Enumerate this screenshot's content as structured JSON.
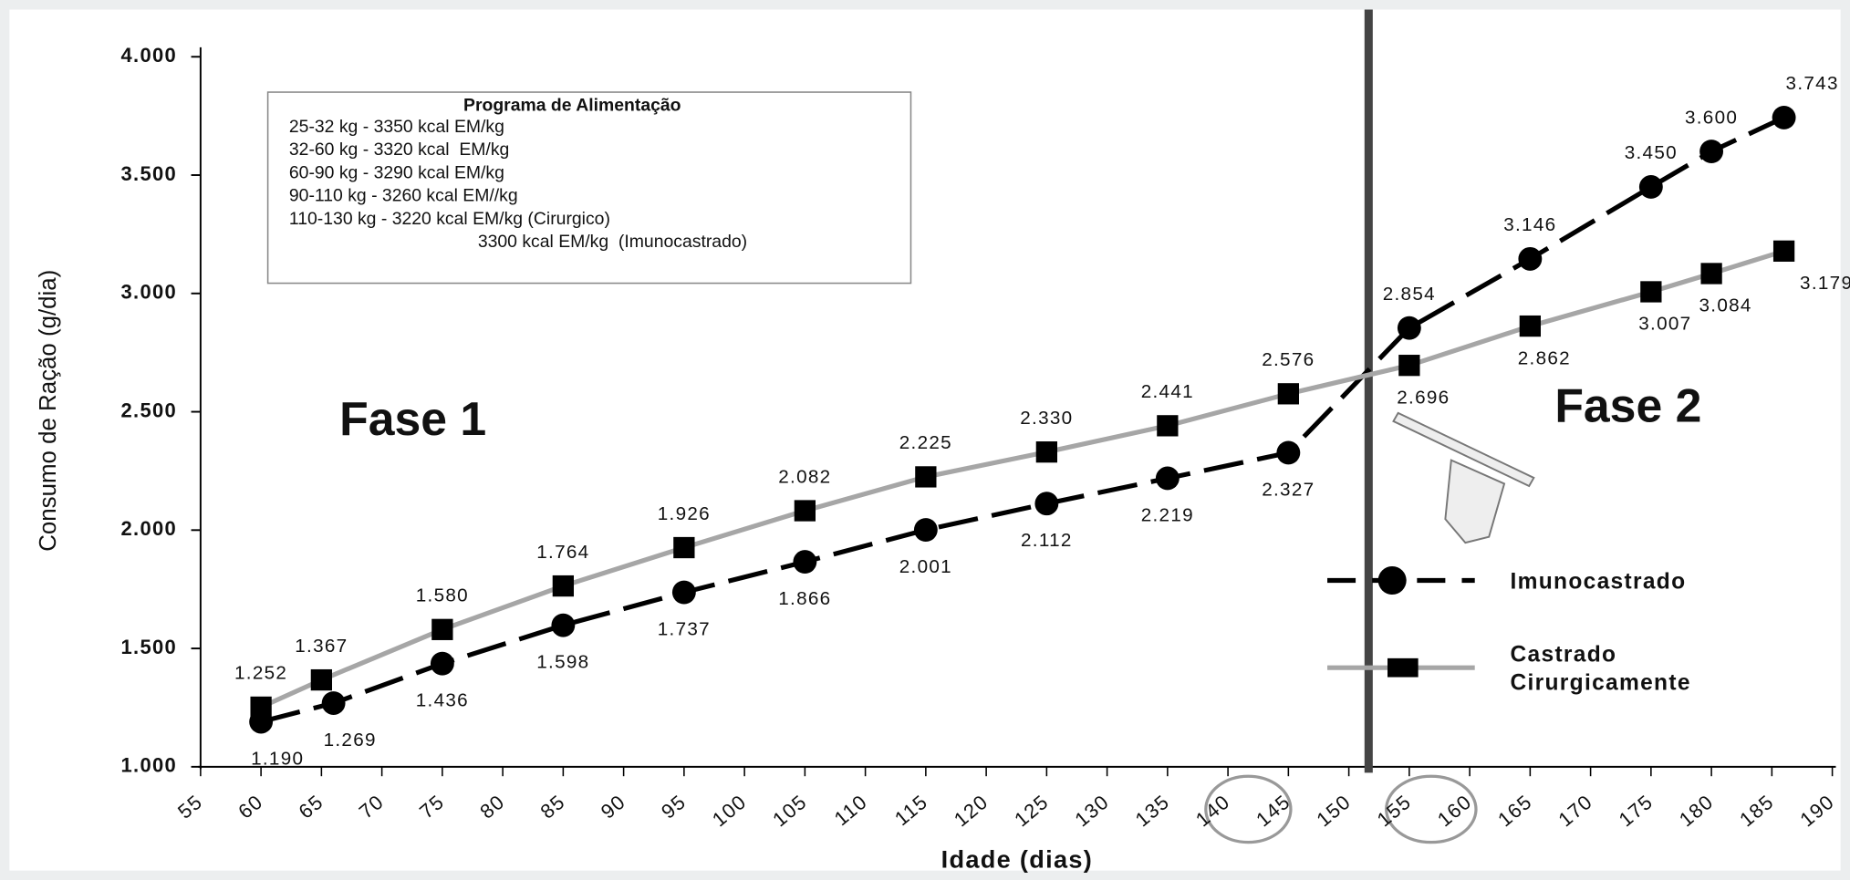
{
  "chart_data": {
    "type": "line",
    "x_label": "Idade (dias)",
    "y_label": "Consumo de Ração (g/dia)",
    "xlim": [
      55,
      190
    ],
    "xticks": [
      55,
      60,
      65,
      70,
      75,
      80,
      85,
      90,
      95,
      100,
      105,
      110,
      115,
      120,
      125,
      130,
      135,
      140,
      145,
      150,
      155,
      160,
      165,
      170,
      175,
      180,
      185,
      190
    ],
    "ylim": [
      1000,
      4000
    ],
    "yticks": [
      {
        "value": 1000,
        "label": "1.000"
      },
      {
        "value": 1500,
        "label": "1.500"
      },
      {
        "value": 2000,
        "label": "2.000"
      },
      {
        "value": 2500,
        "label": "2.500"
      },
      {
        "value": 3000,
        "label": "3.000"
      },
      {
        "value": 3500,
        "label": "3.500"
      },
      {
        "value": 4000,
        "label": "4.000"
      }
    ],
    "legend": "right",
    "series": [
      {
        "name": "Imunocastrado",
        "color": "#000000",
        "marker": "circle",
        "dash": true,
        "x": [
          60,
          66,
          75,
          85,
          95,
          105,
          115,
          125,
          135,
          145,
          155,
          165,
          175,
          180,
          186
        ],
        "values": [
          1190,
          1269,
          1436,
          1598,
          1737,
          1866,
          2001,
          2112,
          2219,
          2327,
          2854,
          3146,
          3450,
          3600,
          3743
        ],
        "value_labels": [
          "1.190",
          "1.269",
          "1.436",
          "1.598",
          "1.737",
          "1.866",
          "2.001",
          "2.112",
          "2.219",
          "2.327",
          "2.854",
          "3.146",
          "3.450",
          "3.600",
          "3.743"
        ]
      },
      {
        "name": "Castrado Cirurgicamente",
        "color": "#a6a6a6",
        "marker": "square",
        "dash": false,
        "x": [
          60,
          65,
          75,
          85,
          95,
          105,
          115,
          125,
          135,
          145,
          155,
          165,
          175,
          180,
          186
        ],
        "values": [
          1252,
          1367,
          1580,
          1764,
          1926,
          2082,
          2225,
          2330,
          2441,
          2576,
          2696,
          2862,
          3007,
          3084,
          3179
        ],
        "value_labels": [
          "1.252",
          "1.367",
          "1.580",
          "1.764",
          "1.926",
          "2.082",
          "2.225",
          "2.330",
          "2.441",
          "2.576",
          "2.696",
          "2.862",
          "3.007",
          "3.084",
          "3.179"
        ]
      }
    ],
    "annotations": {
      "phase1": "Fase 1",
      "phase2": "Fase 2",
      "box_title": "Programa de Alimentação",
      "box_lines": [
        "25-32 kg - 3350 kcal EM/kg",
        "32-60 kg - 3320 kcal  EM/kg",
        "60-90 kg - 3290 kcal EM/kg",
        "90-110 kg - 3260 kcal EM//kg",
        "110-130 kg - 3220 kcal EM/kg (Cirurgico)",
        "3300 kcal EM/kg  (Imunocastrado)"
      ]
    }
  }
}
